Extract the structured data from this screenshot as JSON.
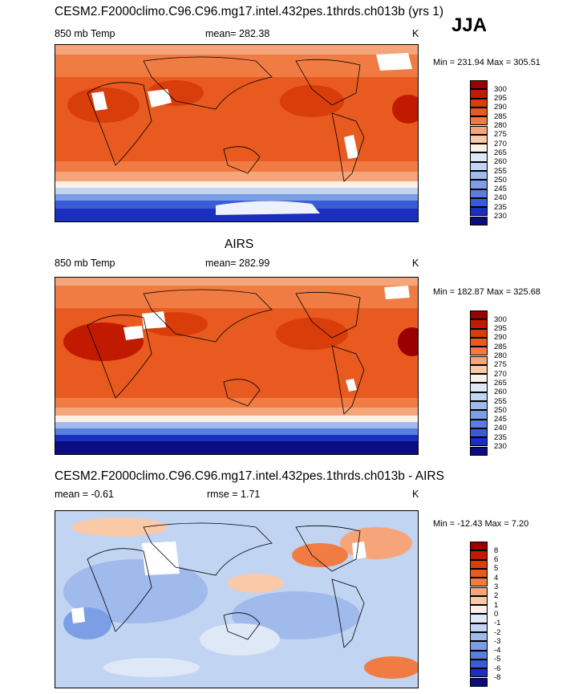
{
  "season": "JJA",
  "panels": [
    {
      "title": "CESM2.F2000climo.C96.C96.mg17.intel.432pes.1thrds.ch013b (yrs 1)",
      "variable": "850 mb Temp",
      "stat": "mean= 282.38",
      "stat2": "",
      "units": "K",
      "minmax": "Min = 231.94 Max = 305.51",
      "kind": "abs"
    },
    {
      "title": "AIRS",
      "variable": "850 mb Temp",
      "stat": "mean= 282.99",
      "stat2": "",
      "units": "K",
      "minmax": "Min = 182.87 Max = 325.68",
      "kind": "abs"
    },
    {
      "title": "CESM2.F2000climo.C96.C96.mg17.intel.432pes.1thrds.ch013b - AIRS",
      "variable": "",
      "stat": "mean =  -0.61",
      "stat2": "rmse =   1.71",
      "units": "K",
      "minmax": "Min = -12.43 Max =   7.20",
      "kind": "diff"
    }
  ],
  "colorbars": {
    "abs": {
      "labels": [
        "300",
        "295",
        "290",
        "285",
        "280",
        "275",
        "270",
        "265",
        "260",
        "255",
        "250",
        "245",
        "240",
        "235",
        "230"
      ],
      "colors": [
        "#990000",
        "#c21a00",
        "#d93d0a",
        "#e85a20",
        "#f07c44",
        "#f6a57a",
        "#f9c9a8",
        "#fdf0e6",
        "#dfe8f7",
        "#c1d4f2",
        "#a1baec",
        "#7c9ee6",
        "#5a7ee0",
        "#3a5bd6",
        "#1a2fbf",
        "#0a0d80"
      ]
    },
    "diff": {
      "labels": [
        "8",
        "6",
        "5",
        "4",
        "3",
        "2",
        "1",
        "0",
        "-1",
        "-2",
        "-3",
        "-4",
        "-5",
        "-6",
        "-8"
      ],
      "colors": [
        "#990000",
        "#c21a00",
        "#d93d0a",
        "#e85a20",
        "#f07c44",
        "#f6a57a",
        "#f9c9a8",
        "#fdf0e6",
        "#dfe8f7",
        "#c1d4f2",
        "#a1baec",
        "#7c9ee6",
        "#5a7ee0",
        "#3a5bd6",
        "#1a2fbf",
        "#0a0d80"
      ]
    }
  }
}
